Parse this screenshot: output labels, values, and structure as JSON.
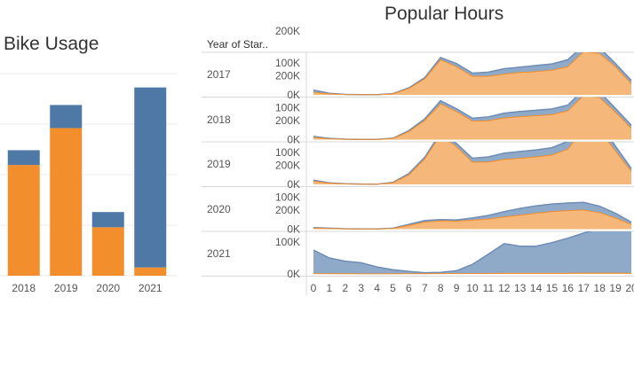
{
  "bike_usage": {
    "title": "Bike Usage"
  },
  "popular_hours": {
    "title": "Popular Hours",
    "row_header": "Year of Star.."
  },
  "colors": {
    "orange": "#F28E2B",
    "blue": "#4E79A7",
    "orange_fill": "#F5B77A",
    "blue_fill": "#8FA9C9",
    "blue_line": "#6F8DB5",
    "grid": "#EBEBEB",
    "axis": "#D9D9D9"
  },
  "chart_data": [
    {
      "type": "bar",
      "title": "Bike Usage",
      "categories": [
        "2018",
        "2019",
        "2020",
        "2021"
      ],
      "series": [
        {
          "values": [
            240,
            320,
            105,
            18
          ],
          "color": "#F28E2B"
        },
        {
          "values": [
            32,
            50,
            33,
            390
          ],
          "color": "#4E79A7"
        }
      ],
      "ylim": [
        0,
        440
      ],
      "grid": true
    },
    {
      "type": "area",
      "title": "Popular Hours",
      "row_header": "Year of Star..",
      "x": [
        0,
        1,
        2,
        3,
        4,
        5,
        6,
        7,
        8,
        9,
        10,
        11,
        12,
        13,
        14,
        15,
        16,
        17,
        18,
        19,
        20
      ],
      "x_tick_labels": [
        "0",
        "1",
        "2",
        "3",
        "4",
        "5",
        "6",
        "7",
        "8",
        "9",
        "10",
        "11",
        "12",
        "13",
        "14",
        "15",
        "16",
        "17",
        "18",
        "19",
        "20"
      ],
      "y_tick_labels": [
        "200K",
        "100K",
        "0K"
      ],
      "ylim": [
        0,
        240000
      ],
      "rows": [
        {
          "year": "2017",
          "series": [
            {
              "values": [
                8000,
                3000,
                1000,
                500,
                400,
                3000,
                20000,
                50000,
                110000,
                88000,
                58000,
                58000,
                65000,
                70000,
                73000,
                77000,
                88000,
                135000,
                130000,
                88000,
                35000
              ],
              "color": "#F28E2B"
            },
            {
              "values": [
                15000,
                5000,
                1500,
                800,
                600,
                4000,
                22000,
                54000,
                117000,
                98000,
                68000,
                71000,
                82000,
                87000,
                92000,
                97000,
                110000,
                155000,
                148000,
                98000,
                45000
              ],
              "color": "#4E79A7"
            }
          ]
        },
        {
          "year": "2018",
          "series": [
            {
              "values": [
                7000,
                2500,
                1000,
                500,
                400,
                3500,
                25000,
                60000,
                112000,
                88000,
                58000,
                59000,
                68000,
                72000,
                75000,
                78000,
                90000,
                138000,
                132000,
                86000,
                35000
              ],
              "color": "#F28E2B"
            },
            {
              "values": [
                10000,
                4000,
                1300,
                700,
                500,
                4500,
                28000,
                65000,
                122000,
                97000,
                67000,
                71000,
                83000,
                88000,
                92000,
                96000,
                108000,
                157000,
                150000,
                98000,
                45000
              ],
              "color": "#4E79A7"
            }
          ]
        },
        {
          "year": "2019",
          "series": [
            {
              "values": [
                10000,
                4000,
                1500,
                700,
                600,
                5000,
                30000,
                80000,
                155000,
                118000,
                70000,
                70000,
                78000,
                82000,
                86000,
                92000,
                110000,
                175000,
                168000,
                105000,
                40000
              ],
              "color": "#F28E2B"
            },
            {
              "values": [
                13000,
                5000,
                2000,
                1000,
                800,
                6000,
                34000,
                85000,
                162000,
                128000,
                82000,
                86000,
                98000,
                103000,
                108000,
                115000,
                135000,
                200000,
                190000,
                120000,
                50000
              ],
              "color": "#4E79A7"
            }
          ]
        },
        {
          "year": "2020",
          "series": [
            {
              "values": [
                3000,
                2000,
                1000,
                500,
                500,
                2000,
                12000,
                22000,
                26000,
                25000,
                28000,
                32000,
                38000,
                44000,
                50000,
                55000,
                58000,
                60000,
                52000,
                35000,
                15000
              ],
              "color": "#F28E2B"
            },
            {
              "values": [
                5000,
                3000,
                1500,
                800,
                700,
                3000,
                15000,
                27000,
                30000,
                29000,
                35000,
                43000,
                55000,
                65000,
                73000,
                79000,
                82000,
                84000,
                72000,
                50000,
                22000
              ],
              "color": "#4E79A7"
            }
          ]
        },
        {
          "year": "2021",
          "series": [
            {
              "values": [
                1000,
                800,
                600,
                400,
                300,
                300,
                500,
                800,
                1000,
                1000,
                1200,
                1500,
                2000,
                2000,
                2000,
                2000,
                2000,
                2500,
                2500,
                2500,
                2000
              ],
              "color": "#F28E2B"
            },
            {
              "values": [
                75000,
                50000,
                40000,
                35000,
                22000,
                13000,
                8000,
                4000,
                5000,
                10000,
                30000,
                62000,
                95000,
                87000,
                87000,
                98000,
                112000,
                128000,
                142000,
                150000,
                162000
              ],
              "color": "#4E79A7"
            }
          ]
        }
      ]
    }
  ]
}
